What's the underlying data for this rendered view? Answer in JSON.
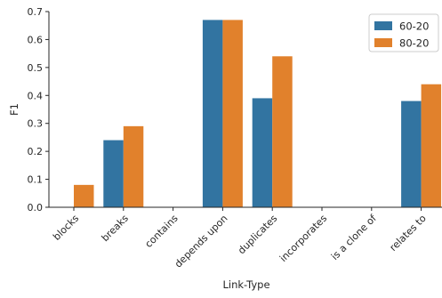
{
  "chart_data": {
    "type": "bar",
    "categories": [
      "blocks",
      "breaks",
      "contains",
      "depends upon",
      "duplicates",
      "incorporates",
      "is a clone of",
      "relates to"
    ],
    "series": [
      {
        "name": "60-20",
        "color": "#3274a1",
        "values": [
          0.0,
          0.24,
          0.0,
          0.67,
          0.39,
          0.0,
          0.0,
          0.38
        ]
      },
      {
        "name": "80-20",
        "color": "#e1812c",
        "values": [
          0.08,
          0.29,
          0.0,
          0.67,
          0.54,
          0.0,
          0.0,
          0.44
        ]
      }
    ],
    "title": "",
    "xlabel": "Link-Type",
    "ylabel": "F1",
    "ylim": [
      0,
      0.7
    ],
    "yticks": [
      "0.0",
      "0.1",
      "0.2",
      "0.3",
      "0.4",
      "0.5",
      "0.6",
      "0.7"
    ],
    "grid": false,
    "legend_position": "top-right"
  }
}
